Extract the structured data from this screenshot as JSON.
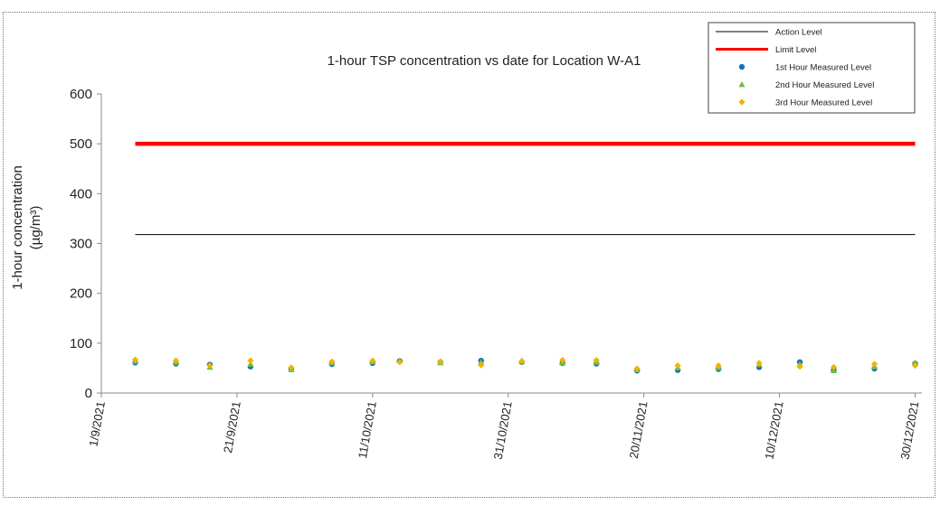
{
  "chart_data": {
    "type": "scatter",
    "title": "1-hour TSP concentration vs date for Location W-A1",
    "ylabel": "1-hour concentration",
    "ylabel_unit": "(µg/m³)",
    "xlabel": "",
    "ylim": [
      0,
      600
    ],
    "yticks": [
      0,
      100,
      200,
      300,
      400,
      500,
      600
    ],
    "xlim": [
      "2021-09-01",
      "2021-12-31"
    ],
    "xticks": [
      {
        "date": "2021-09-01",
        "label": "1/9/2021"
      },
      {
        "date": "2021-09-21",
        "label": "21/9/2021"
      },
      {
        "date": "2021-10-11",
        "label": "11/10/2021"
      },
      {
        "date": "2021-10-31",
        "label": "31/10/2021"
      },
      {
        "date": "2021-11-20",
        "label": "20/11/2021"
      },
      {
        "date": "2021-12-10",
        "label": "10/12/2021"
      },
      {
        "date": "2021-12-30",
        "label": "30/12/2021"
      }
    ],
    "grid": false,
    "legend_position": "top-right",
    "series": [
      {
        "name": "Action Level",
        "kind": "line",
        "color": "#000000",
        "x": [
          "2021-09-06",
          "2021-12-30"
        ],
        "y": [
          318,
          318
        ]
      },
      {
        "name": "Limit Level",
        "kind": "line",
        "color": "#ff0000",
        "x": [
          "2021-09-06",
          "2021-12-30"
        ],
        "y": [
          500,
          500
        ]
      },
      {
        "name": "1st Hour Measured Level",
        "kind": "scatter",
        "color": "#1f6fb5",
        "marker": "circle",
        "x": [
          "2021-09-06",
          "2021-09-12",
          "2021-09-17",
          "2021-09-23",
          "2021-09-29",
          "2021-10-05",
          "2021-10-11",
          "2021-10-15",
          "2021-10-21",
          "2021-10-27",
          "2021-11-02",
          "2021-11-08",
          "2021-11-13",
          "2021-11-19",
          "2021-11-25",
          "2021-12-01",
          "2021-12-07",
          "2021-12-13",
          "2021-12-18",
          "2021-12-24",
          "2021-12-30"
        ],
        "y": [
          61,
          59,
          57,
          53,
          49,
          58,
          60,
          64,
          62,
          65,
          62,
          60,
          59,
          45,
          46,
          48,
          52,
          62,
          46,
          49,
          59
        ]
      },
      {
        "name": "2nd Hour Measured Level",
        "kind": "scatter",
        "color": "#70c040",
        "marker": "triangle",
        "x": [
          "2021-09-06",
          "2021-09-12",
          "2021-09-17",
          "2021-09-23",
          "2021-09-29",
          "2021-10-05",
          "2021-10-11",
          "2021-10-15",
          "2021-10-21",
          "2021-10-27",
          "2021-11-02",
          "2021-11-08",
          "2021-11-13",
          "2021-11-19",
          "2021-11-25",
          "2021-12-01",
          "2021-12-07",
          "2021-12-13",
          "2021-12-18",
          "2021-12-24",
          "2021-12-30"
        ],
        "y": [
          64,
          62,
          52,
          58,
          47,
          61,
          63,
          65,
          61,
          62,
          65,
          61,
          62,
          47,
          51,
          51,
          57,
          58,
          45,
          53,
          61
        ]
      },
      {
        "name": "3rd Hour Measured Level",
        "kind": "scatter",
        "color": "#f0b400",
        "marker": "diamond",
        "x": [
          "2021-09-06",
          "2021-09-12",
          "2021-09-17",
          "2021-09-23",
          "2021-09-29",
          "2021-10-05",
          "2021-10-11",
          "2021-10-15",
          "2021-10-21",
          "2021-10-27",
          "2021-11-02",
          "2021-11-08",
          "2021-11-13",
          "2021-11-19",
          "2021-11-25",
          "2021-12-01",
          "2021-12-07",
          "2021-12-13",
          "2021-12-18",
          "2021-12-24",
          "2021-12-30"
        ],
        "y": [
          67,
          65,
          55,
          65,
          51,
          63,
          65,
          62,
          63,
          56,
          63,
          66,
          66,
          49,
          55,
          55,
          60,
          53,
          52,
          58,
          55
        ]
      }
    ]
  }
}
